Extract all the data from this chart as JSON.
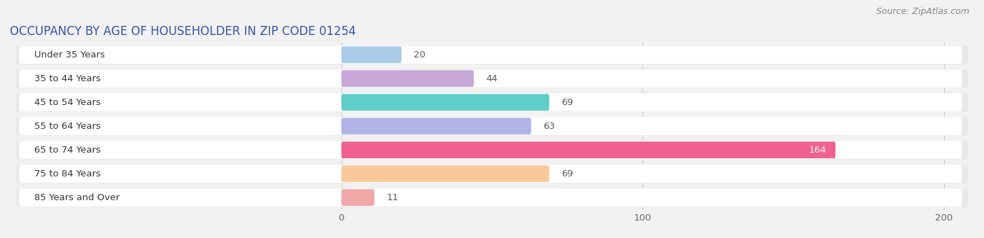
{
  "title": "OCCUPANCY BY AGE OF HOUSEHOLDER IN ZIP CODE 01254",
  "source": "Source: ZipAtlas.com",
  "categories": [
    "Under 35 Years",
    "35 to 44 Years",
    "45 to 54 Years",
    "55 to 64 Years",
    "65 to 74 Years",
    "75 to 84 Years",
    "85 Years and Over"
  ],
  "values": [
    20,
    44,
    69,
    63,
    164,
    69,
    11
  ],
  "bar_colors": [
    "#a8cce8",
    "#c8a8d8",
    "#5ecec8",
    "#b0b4e8",
    "#f06090",
    "#f8c898",
    "#f0a8a8"
  ],
  "xlim_left": -110,
  "xlim_right": 210,
  "xticks": [
    0,
    100,
    200
  ],
  "bar_height": 0.72,
  "background_color": "#f2f2f2",
  "pill_bg_color": "#e8e8e8",
  "pill_inner_color": "#ffffff",
  "label_color": "#333333",
  "label_color_inside": "#ffffff",
  "value_color_outside": "#555555",
  "title_fontsize": 12,
  "label_fontsize": 9.5,
  "tick_fontsize": 9.5,
  "source_fontsize": 9,
  "title_color": "#3355aa"
}
